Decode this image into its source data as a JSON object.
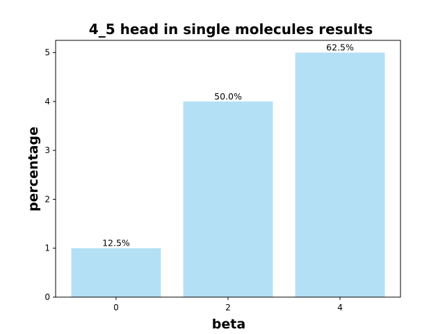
{
  "chart_data": {
    "type": "bar",
    "title": "4_5 head in single molecules results",
    "xlabel": "beta",
    "ylabel": "percentage",
    "categories": [
      "0",
      "2",
      "4"
    ],
    "values": [
      1,
      4,
      5
    ],
    "data_labels": [
      "12.5%",
      "50.0%",
      "62.5%"
    ],
    "yticks": [
      0,
      1,
      2,
      3,
      4,
      5
    ],
    "ylim": [
      0,
      5.25
    ],
    "grid": false,
    "bar_color": "#b3e0f4"
  }
}
